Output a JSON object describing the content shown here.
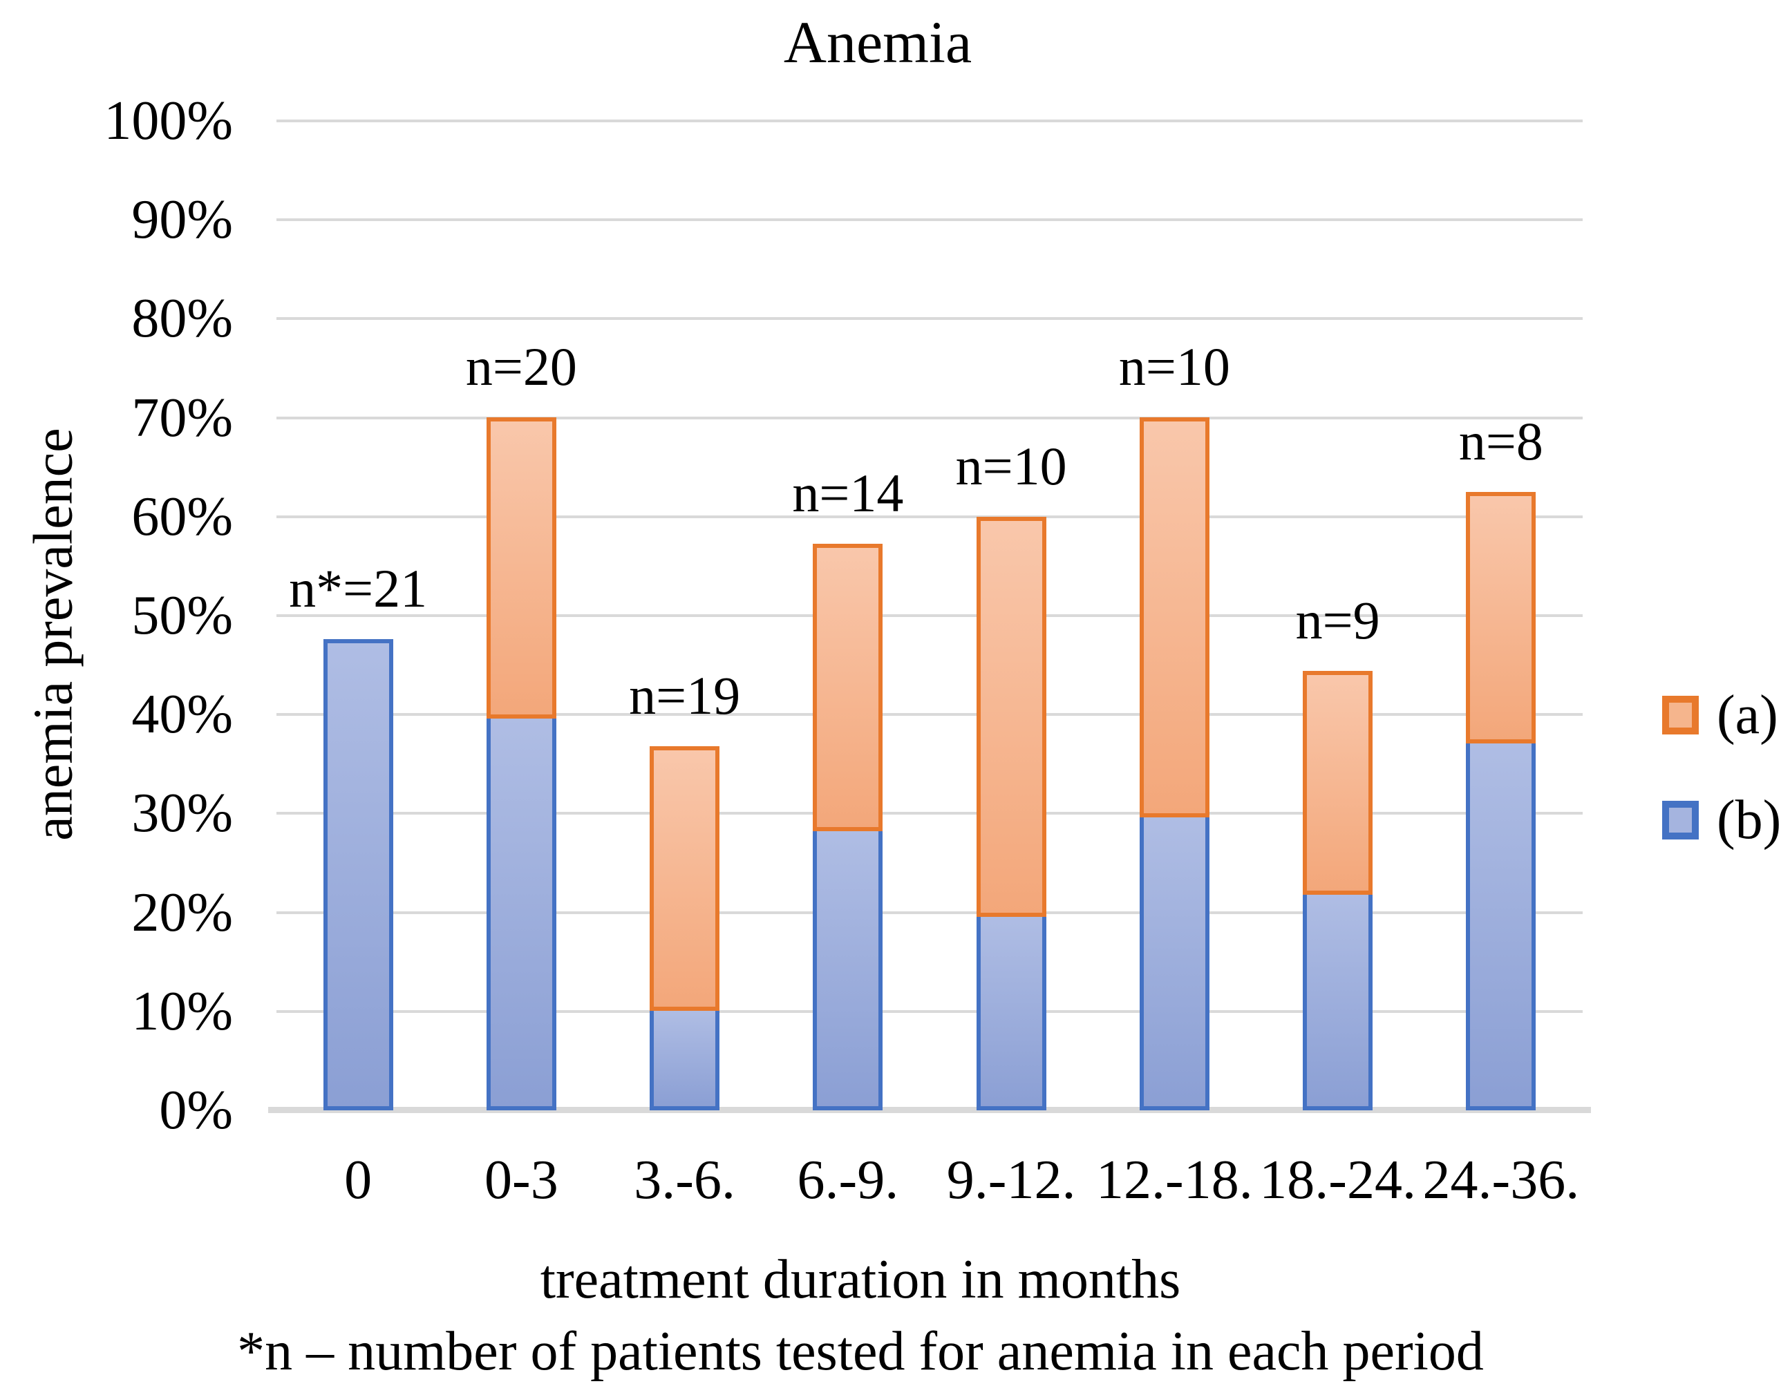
{
  "title": "Anemia",
  "y_axis": {
    "label": "anemia prevalence",
    "ticks": [
      "100%",
      "90%",
      "80%",
      "70%",
      "60%",
      "50%",
      "40%",
      "30%",
      "20%",
      "10%",
      "0%"
    ]
  },
  "x_axis": {
    "label": "treatment duration in months"
  },
  "footnote": "*n – number of patients tested for anemia in each period",
  "legend": [
    {
      "label": "(a)",
      "border": "#E8792C",
      "fill": "#F5B58D"
    },
    {
      "label": "(b)",
      "border": "#4472C4",
      "fill": "#A5B4DF"
    }
  ],
  "colors": {
    "gridline": "#D9D9D9",
    "axis_line": "#D9D9D9",
    "orange_border": "#E8792C",
    "orange_fill_top": "#F9C7AB",
    "orange_fill_bottom": "#F3A77A",
    "blue_border": "#4472C4",
    "blue_fill_top": "#AFBDE4",
    "blue_fill_bottom": "#8B9FD4",
    "text": "#000000"
  },
  "chart_data": {
    "type": "bar",
    "stacked": true,
    "title": "Anemia",
    "xlabel": "treatment duration in months",
    "ylabel": "anemia prevalence",
    "ylim": [
      0,
      100
    ],
    "grid": true,
    "legend_position": "right",
    "categories": [
      "0",
      "0-3",
      "3.-6.",
      "6.-9.",
      "9.-12.",
      "12.-18.",
      "18.-24.",
      "24.-36."
    ],
    "series": [
      {
        "name": "(a)",
        "values": [
          0,
          30.0,
          26.3,
          28.6,
          40.0,
          40.0,
          22.2,
          25.0
        ]
      },
      {
        "name": "(b)",
        "values": [
          47.6,
          40.0,
          10.5,
          28.6,
          20.0,
          30.0,
          22.2,
          37.5
        ]
      }
    ],
    "totals_percent": [
      47.6,
      70.0,
      36.8,
      57.1,
      60.0,
      70.0,
      44.4,
      62.5
    ],
    "n_labels": [
      "n*=21",
      "n=20",
      "n=19",
      "n=14",
      "n=10",
      "n=10",
      "n=9",
      "n=8"
    ]
  }
}
